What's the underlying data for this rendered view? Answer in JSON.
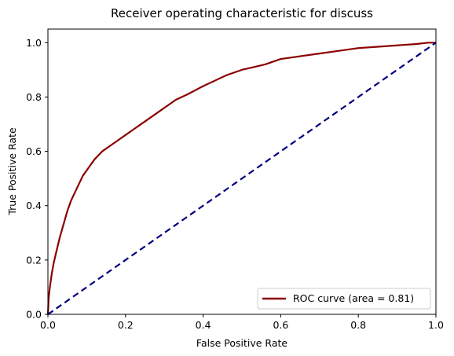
{
  "chart_data": {
    "type": "line",
    "title": "Receiver operating characteristic for discuss",
    "xlabel": "False Positive Rate",
    "ylabel": "True Positive Rate",
    "xlim": [
      0.0,
      1.0
    ],
    "ylim": [
      0.0,
      1.05
    ],
    "xticks": [
      "0.0",
      "0.2",
      "0.4",
      "0.6",
      "0.8",
      "1.0"
    ],
    "yticks": [
      "0.0",
      "0.2",
      "0.4",
      "0.6",
      "0.8",
      "1.0"
    ],
    "xtick_values": [
      0.0,
      0.2,
      0.4,
      0.6,
      0.8,
      1.0
    ],
    "ytick_values": [
      0.0,
      0.2,
      0.4,
      0.6,
      0.8,
      1.0
    ],
    "grid": false,
    "legend_position": "lower-right",
    "series": [
      {
        "name": "ROC curve (area = 0.81)",
        "color": "#8b0000",
        "style": "solid",
        "x": [
          0.0,
          0.002,
          0.005,
          0.01,
          0.015,
          0.02,
          0.03,
          0.04,
          0.05,
          0.06,
          0.07,
          0.08,
          0.09,
          0.1,
          0.12,
          0.14,
          0.16,
          0.18,
          0.2,
          0.22,
          0.25,
          0.28,
          0.3,
          0.33,
          0.36,
          0.4,
          0.43,
          0.46,
          0.5,
          0.53,
          0.56,
          0.6,
          0.65,
          0.7,
          0.75,
          0.8,
          0.85,
          0.9,
          0.95,
          0.98,
          1.0
        ],
        "y": [
          0.0,
          0.06,
          0.1,
          0.15,
          0.19,
          0.22,
          0.28,
          0.33,
          0.38,
          0.42,
          0.45,
          0.48,
          0.51,
          0.53,
          0.57,
          0.6,
          0.62,
          0.64,
          0.66,
          0.68,
          0.71,
          0.74,
          0.76,
          0.79,
          0.81,
          0.84,
          0.86,
          0.88,
          0.9,
          0.91,
          0.92,
          0.94,
          0.95,
          0.96,
          0.97,
          0.98,
          0.985,
          0.99,
          0.995,
          1.0,
          1.0
        ]
      },
      {
        "name": "",
        "color": "#000080",
        "style": "dashed",
        "x": [
          0.0,
          1.0
        ],
        "y": [
          0.0,
          1.0
        ]
      }
    ]
  }
}
